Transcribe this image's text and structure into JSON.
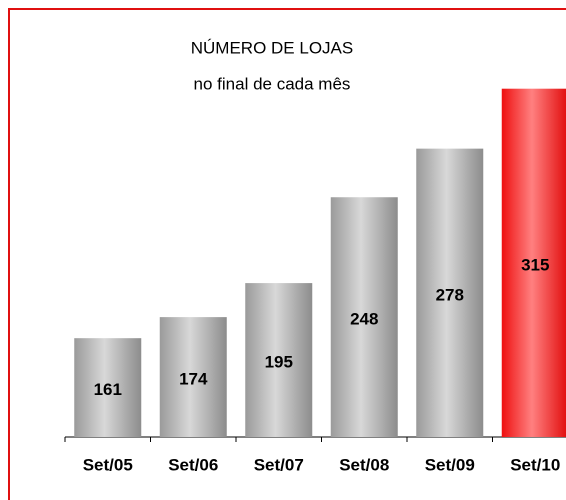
{
  "chart_data": {
    "type": "bar",
    "title": "NÚMERO DE LOJAS",
    "subtitle": "no final de cada mês",
    "categories": [
      "Set/05",
      "Set/06",
      "Set/07",
      "Set/08",
      "Set/09",
      "Set/10"
    ],
    "values": [
      161,
      174,
      195,
      248,
      278,
      315
    ],
    "colors": [
      "#a8a8a8",
      "#a8a8a8",
      "#a8a8a8",
      "#a8a8a8",
      "#a8a8a8",
      "#ff2020"
    ],
    "ylim": [
      100,
      350
    ]
  }
}
